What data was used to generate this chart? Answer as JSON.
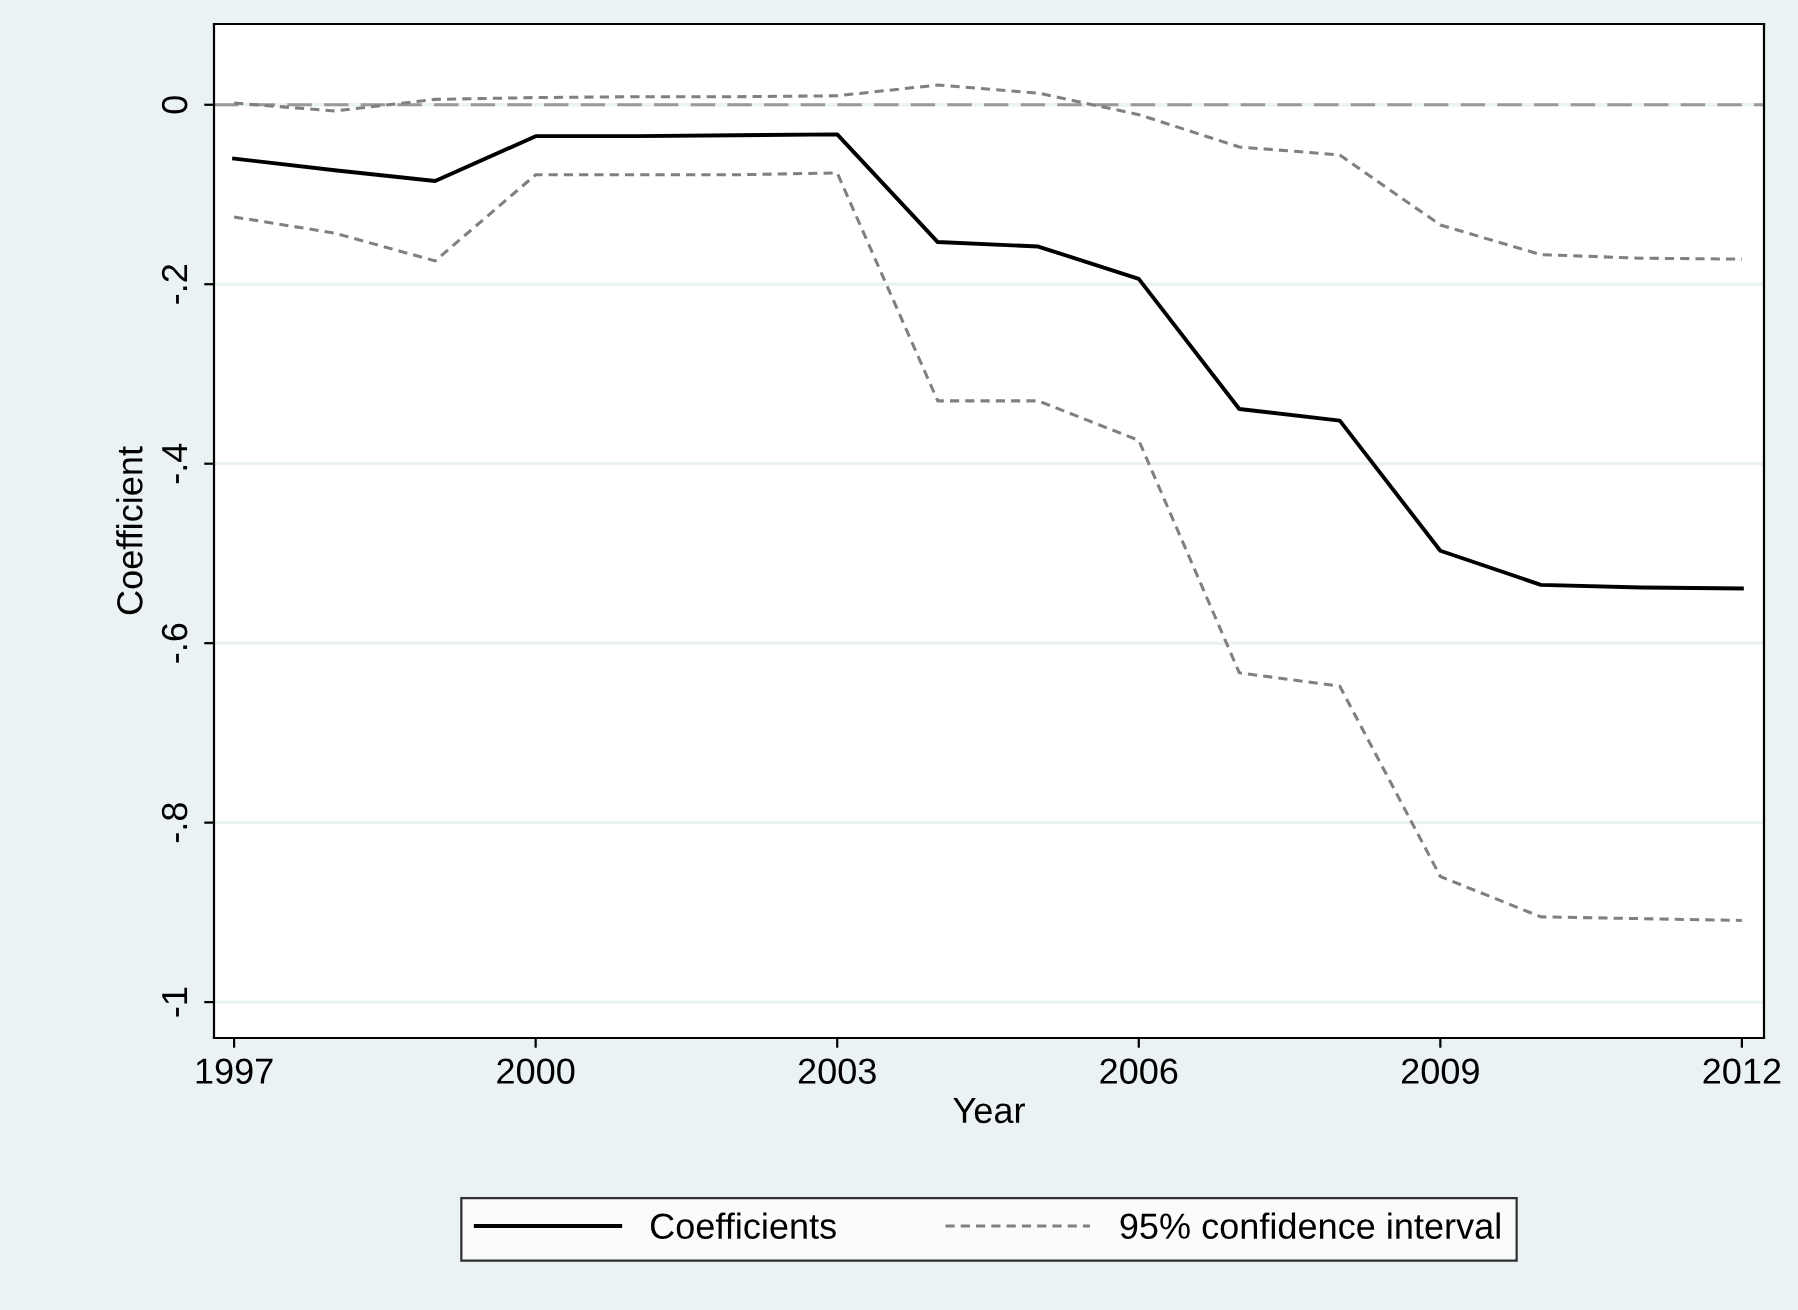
{
  "chart_data": {
    "type": "line",
    "xlabel": "Year",
    "ylabel": "Coefficient",
    "x": [
      1997,
      1998,
      1999,
      2000,
      2001,
      2002,
      2003,
      2004,
      2005,
      2006,
      2007,
      2008,
      2009,
      2010,
      2011,
      2012
    ],
    "series": [
      {
        "name": "Coefficients",
        "color": "#000000",
        "line_style": "solid",
        "values": [
          -0.06,
          -0.073,
          -0.085,
          -0.035,
          -0.035,
          -0.034,
          -0.033,
          -0.153,
          -0.158,
          -0.194,
          -0.339,
          -0.352,
          -0.497,
          -0.535,
          -0.538,
          -0.539
        ]
      },
      {
        "name": "95% confidence interval",
        "color": "#808080",
        "line_style": "dashed",
        "values": [
          -0.125,
          -0.143,
          -0.174,
          -0.078,
          -0.078,
          -0.078,
          -0.076,
          -0.33,
          -0.33,
          -0.374,
          -0.633,
          -0.648,
          -0.86,
          -0.905,
          -0.907,
          -0.909
        ]
      },
      {
        "color": "#808080",
        "line_style": "dashed",
        "values": [
          0.002,
          -0.007,
          0.006,
          0.008,
          0.009,
          0.009,
          0.01,
          0.022,
          0.013,
          -0.011,
          -0.047,
          -0.056,
          -0.134,
          -0.167,
          -0.171,
          -0.172
        ]
      }
    ],
    "xlim": [
      1996.8,
      2012.22
    ],
    "xticks": [
      1997,
      2000,
      2003,
      2006,
      2009,
      2012
    ],
    "ylim": [
      -1.04,
      0.09
    ],
    "yticks": [
      {
        "value": -1,
        "label": "-1"
      },
      {
        "value": -0.8,
        "label": "-.8"
      },
      {
        "value": -0.6,
        "label": "-.6"
      },
      {
        "value": -0.4,
        "label": "-.4"
      },
      {
        "value": -0.2,
        "label": "-.2"
      },
      0
    ],
    "ref_lines": [
      {
        "axis": "y",
        "value": 0,
        "color": "#999999",
        "line_style": "dashed"
      }
    ],
    "grid": "y",
    "legend": "bottom",
    "marker": "none"
  }
}
